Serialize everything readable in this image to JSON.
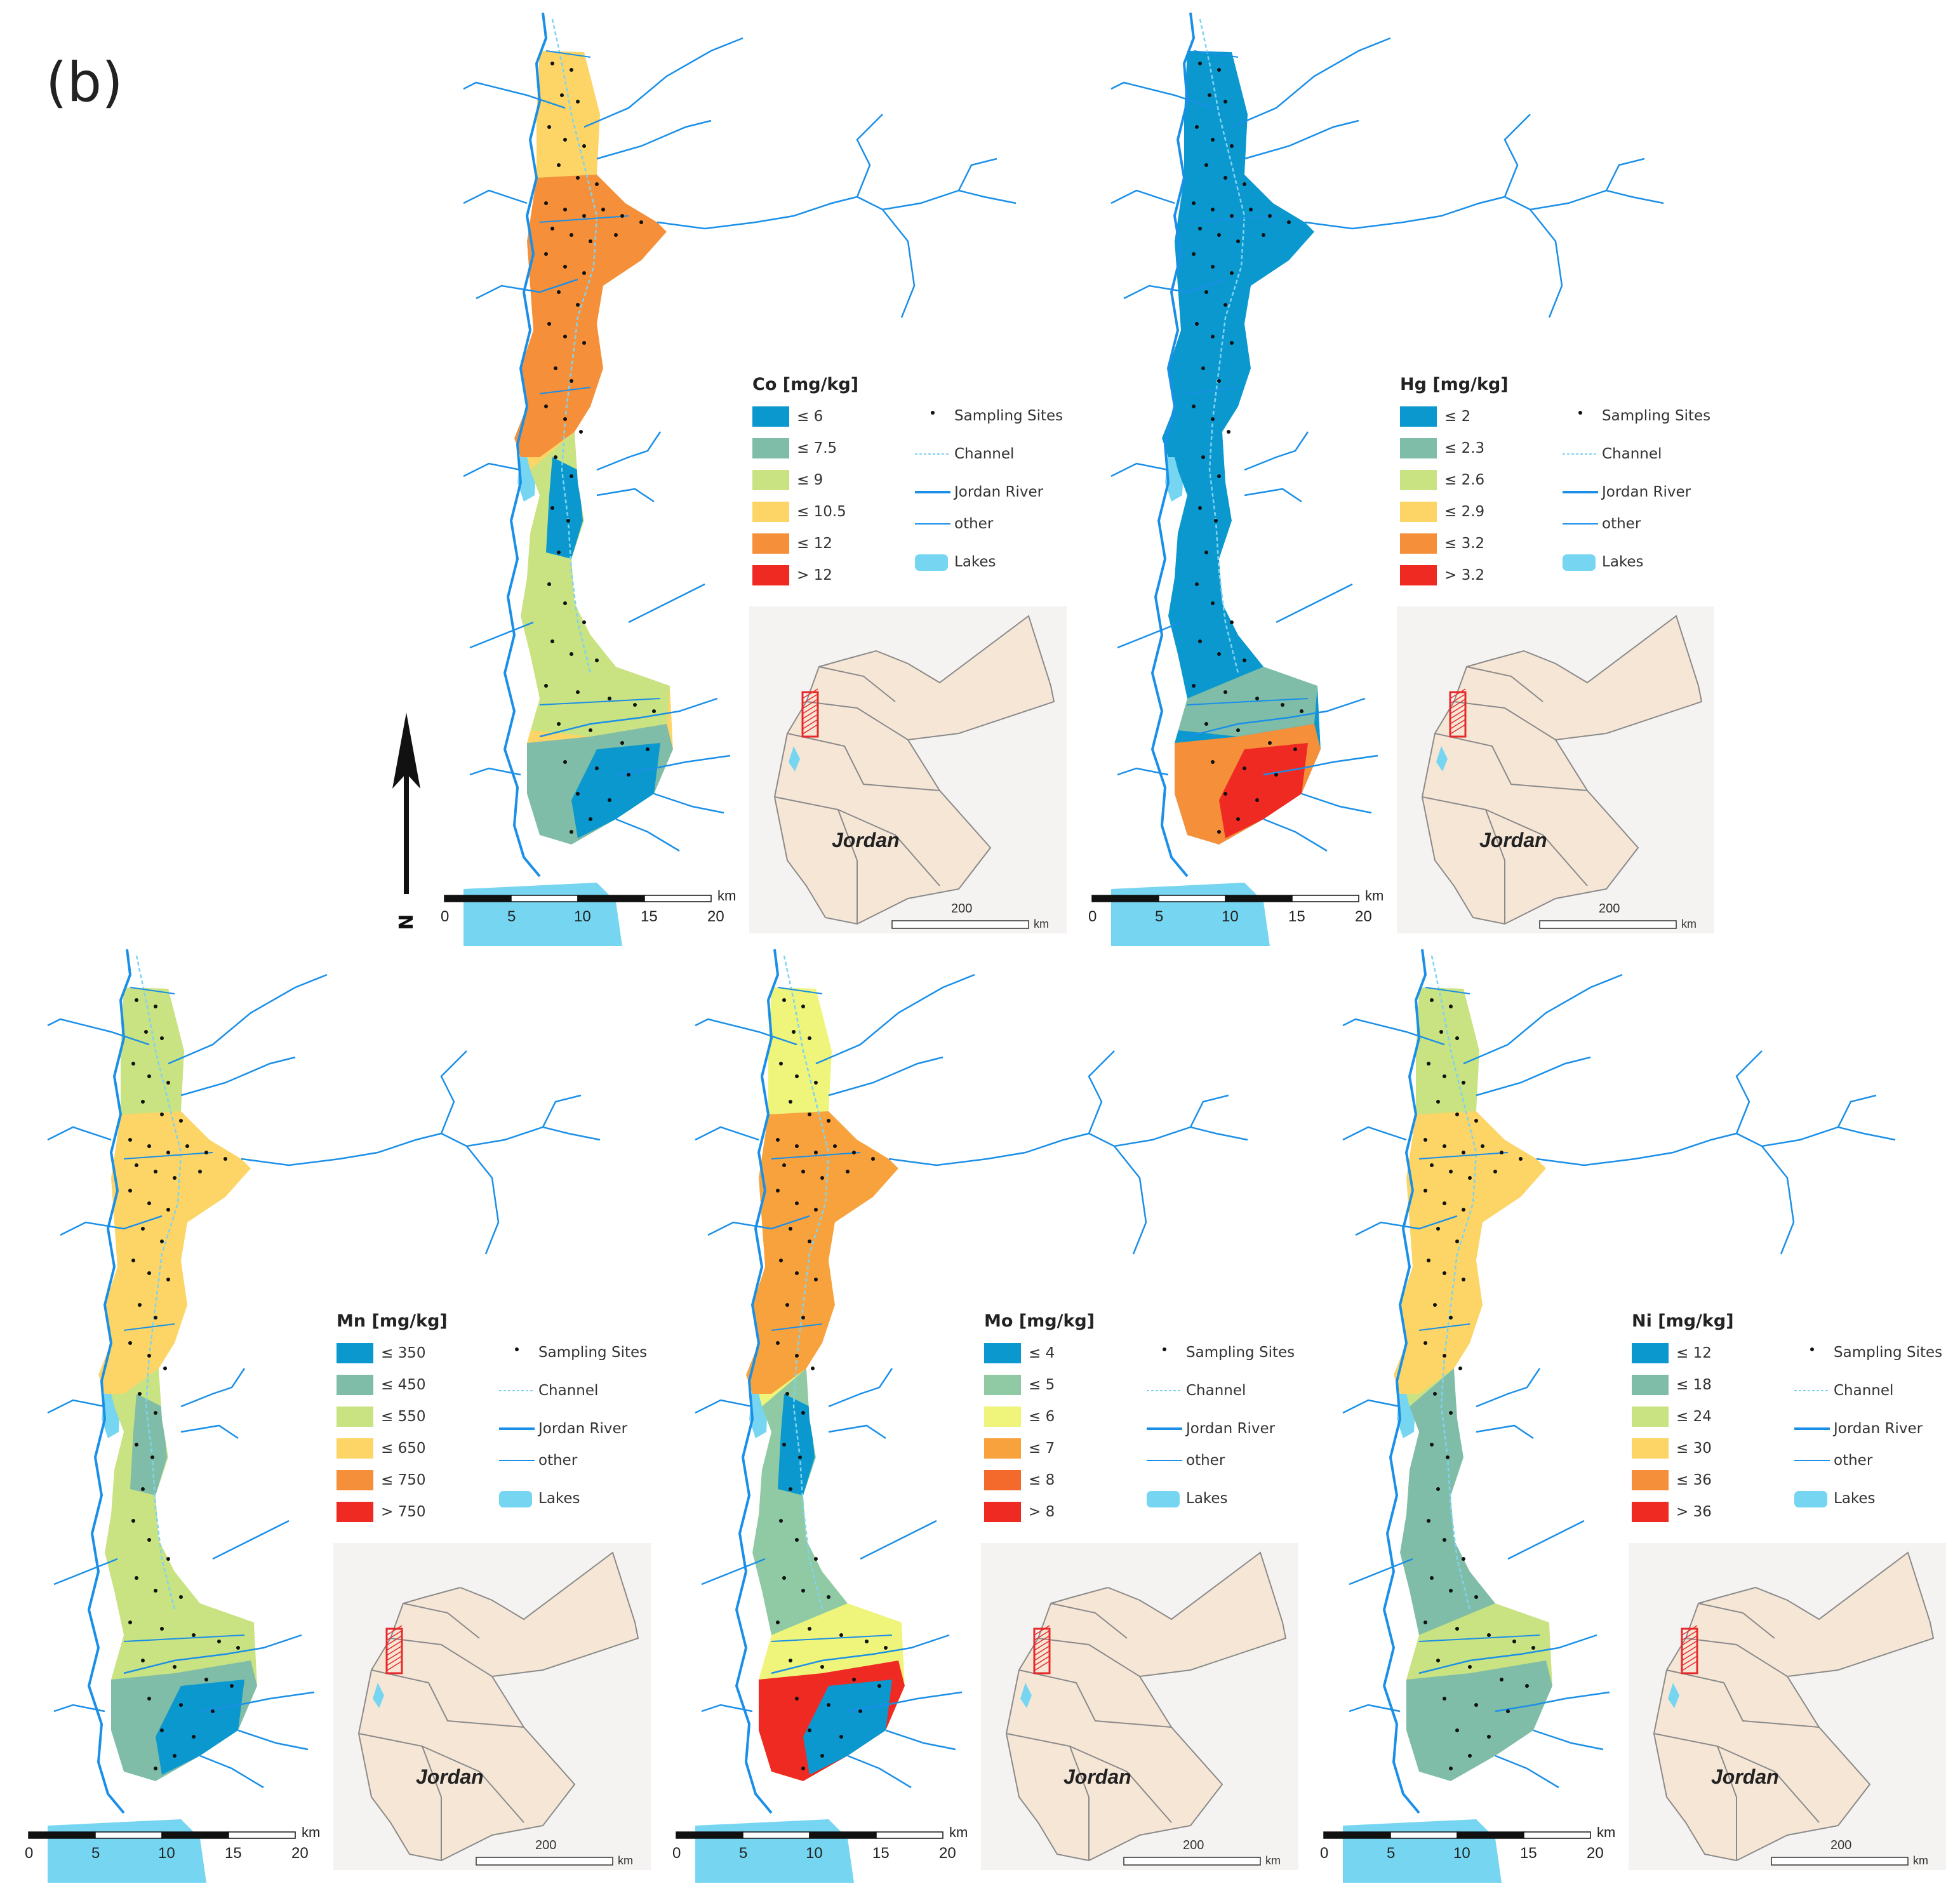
{
  "figure_label": "(b)",
  "north_label": "N",
  "colors": {
    "river": "#1a8fe8",
    "channel": "#7fd3f0",
    "lake": "#76d6f2",
    "site": "#111111",
    "inset_bg": "#f5f3f1",
    "inset_land": "#f6e6d6",
    "inset_box": "#e8292a"
  },
  "legend_common": {
    "sampling_sites": "Sampling Sites",
    "channel": "Channel",
    "jordan_river": "Jordan River",
    "other": "other",
    "lakes": "Lakes"
  },
  "inset": {
    "country_label": "Jordan",
    "scale_value": "200",
    "scale_unit": "km"
  },
  "scalebar": {
    "ticks": [
      "0",
      "5",
      "10",
      "15",
      "20"
    ],
    "unit": "km"
  },
  "panels": [
    {
      "id": "co",
      "title": "Co [mg/kg]",
      "classes": [
        {
          "label": "≤ 6",
          "color": "#0b98cf"
        },
        {
          "label": "≤ 7.5",
          "color": "#7fbda8"
        },
        {
          "label": "≤ 9",
          "color": "#c9e282"
        },
        {
          "label": "≤ 10.5",
          "color": "#fcd566"
        },
        {
          "label": "≤ 12",
          "color": "#f58f3a"
        },
        {
          "label": "> 12",
          "color": "#ee2a23"
        }
      ],
      "zones": [
        "#fcd566",
        "#f58f3a",
        "#c9e282",
        "#0b98cf",
        "#c9e282",
        "#7fbda8",
        "#0b98cf"
      ]
    },
    {
      "id": "hg",
      "title": "Hg [mg/kg]",
      "classes": [
        {
          "label": "≤ 2",
          "color": "#0b98cf"
        },
        {
          "label": "≤ 2.3",
          "color": "#7fbda8"
        },
        {
          "label": "≤ 2.6",
          "color": "#c9e282"
        },
        {
          "label": "≤ 2.9",
          "color": "#fcd566"
        },
        {
          "label": "≤ 3.2",
          "color": "#f58f3a"
        },
        {
          "label": "> 3.2",
          "color": "#ee2a23"
        }
      ],
      "zones": [
        "#0b98cf",
        "#0b98cf",
        "#0b98cf",
        "#0b98cf",
        "#7fbda8",
        "#f58f3a",
        "#ee2a23"
      ]
    },
    {
      "id": "mn",
      "title": "Mn [mg/kg]",
      "classes": [
        {
          "label": "≤ 350",
          "color": "#0b98cf"
        },
        {
          "label": "≤ 450",
          "color": "#7fbda8"
        },
        {
          "label": "≤ 550",
          "color": "#c9e282"
        },
        {
          "label": "≤ 650",
          "color": "#fcd566"
        },
        {
          "label": "≤ 750",
          "color": "#f58f3a"
        },
        {
          "label": "> 750",
          "color": "#ee2a23"
        }
      ],
      "zones": [
        "#c9e282",
        "#fcd566",
        "#c9e282",
        "#7fbda8",
        "#c9e282",
        "#7fbda8",
        "#0b98cf"
      ]
    },
    {
      "id": "mo",
      "title": "Mo [mg/kg]",
      "classes": [
        {
          "label": "≤ 4",
          "color": "#0b98cf"
        },
        {
          "label": "≤ 5",
          "color": "#8fcaa4"
        },
        {
          "label": "≤ 6",
          "color": "#eef57a"
        },
        {
          "label": "≤ 7",
          "color": "#f8a23e"
        },
        {
          "label": "≤ 8",
          "color": "#f46a2c"
        },
        {
          "label": "> 8",
          "color": "#ee2a23"
        }
      ],
      "zones": [
        "#eef57a",
        "#f8a23e",
        "#8fcaa4",
        "#0b98cf",
        "#eef57a",
        "#ee2a23",
        "#0b98cf"
      ]
    },
    {
      "id": "ni",
      "title": "Ni [mg/kg]",
      "classes": [
        {
          "label": "≤ 12",
          "color": "#0b98cf"
        },
        {
          "label": "≤ 18",
          "color": "#7fbda8"
        },
        {
          "label": "≤ 24",
          "color": "#c9e282"
        },
        {
          "label": "≤ 30",
          "color": "#fcd566"
        },
        {
          "label": "≤ 36",
          "color": "#f58f3a"
        },
        {
          "label": "> 36",
          "color": "#ee2a23"
        }
      ],
      "zones": [
        "#c9e282",
        "#fcd566",
        "#7fbda8",
        "#7fbda8",
        "#c9e282",
        "#7fbda8",
        "#7fbda8"
      ]
    }
  ]
}
